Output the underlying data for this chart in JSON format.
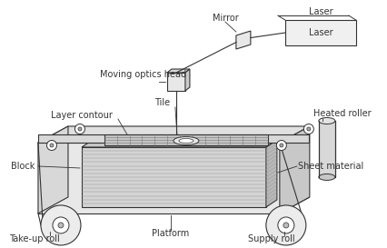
{
  "bg_color": "#ffffff",
  "lc": "#333333",
  "gray_top": "#e0e0e0",
  "gray_front": "#e8e8e8",
  "gray_right": "#c8c8c8",
  "gray_block": "#c0c0c0",
  "gray_block_right": "#aaaaaa",
  "gray_sheet": "#d8d8d8",
  "gray_grid": "#cccccc",
  "gray_roll": "#e4e4e4",
  "gray_roller": "#d0d0d0",
  "labels": {
    "mirror": "Mirror",
    "laser": "Laser",
    "moving_optics": "Moving optics head",
    "tile": "Tile",
    "layer_contour": "Layer contour",
    "heated_roller": "Heated roller",
    "block": "Block",
    "sheet_material": "Sheet material",
    "platform": "Platform",
    "take_up_roll": "Take-up roll",
    "supply_roll": "Supply roll"
  },
  "anno_fs": 7,
  "label_fs": 7
}
